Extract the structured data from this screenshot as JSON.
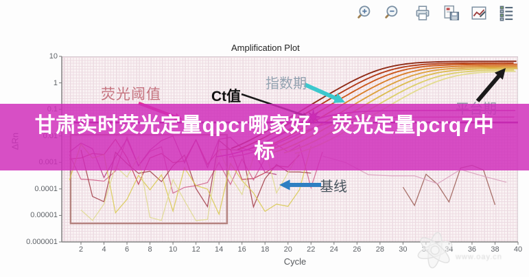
{
  "toolbar": {
    "buttons": [
      {
        "name": "zoom-in"
      },
      {
        "name": "zoom-out"
      },
      {
        "name": "print"
      },
      {
        "name": "save"
      },
      {
        "name": "chart-settings"
      },
      {
        "name": "legend"
      }
    ]
  },
  "banner": {
    "line1": "甘肃实时荧光定量qpcr哪家好，荧光定量pcrq7中",
    "line2": "标",
    "full_text": "甘肃实时荧光定量qpcr哪家好，荧光定量pcrq7中标",
    "background": "#cf2dba"
  },
  "chart_data": {
    "type": "line",
    "title": "Amplification Plot",
    "xlabel": "Cycle",
    "ylabel": "ΔRn",
    "x_ticks": [
      2,
      4,
      6,
      8,
      10,
      12,
      14,
      16,
      18,
      20,
      22,
      24,
      26,
      28,
      30,
      32,
      34,
      36,
      38,
      40
    ],
    "y_tick_labels": [
      "10",
      "1",
      "0.1",
      "0.01",
      "0.001",
      "0.0001",
      "0.00001",
      "0.000001"
    ],
    "x_range": [
      0.3,
      40
    ],
    "y_log_range": [
      -6,
      1
    ],
    "grid": true,
    "legend_position": "none",
    "threshold": {
      "value": 0.032,
      "color": "#8e1680"
    },
    "ct_marker": {
      "cycle": 22.2,
      "value": 0.052,
      "color": "#b62a9e"
    },
    "baseline_box": {
      "cycle_start": 1.1,
      "cycle_end": 14.7,
      "value_low": 5e-06,
      "value_high": 0.011,
      "color": "#b4837f"
    },
    "amplification_series": [
      {
        "color": "#8f2b16",
        "ct": 19.5,
        "plateau": 6.5
      },
      {
        "color": "#b33d18",
        "ct": 20.3,
        "plateau": 5.6
      },
      {
        "color": "#cc5a1d",
        "ct": 21.2,
        "plateau": 5.0
      },
      {
        "color": "#d97f2a",
        "ct": 22.2,
        "plateau": 4.4
      },
      {
        "color": "#dda23f",
        "ct": 23.2,
        "plateau": 3.9
      },
      {
        "color": "#dcbd52",
        "ct": 24.2,
        "plateau": 3.5
      },
      {
        "color": "#ddd06e",
        "ct": 25.3,
        "plateau": 3.1
      },
      {
        "color": "#e3dc92",
        "ct": 26.4,
        "plateau": 2.8
      },
      {
        "color": "#c0399a",
        "ct": 21.8,
        "plateau": 0.09
      },
      {
        "color": "#d4679f",
        "ct": 24.0,
        "plateau": 0.05
      }
    ],
    "noise_series": [
      {
        "color": "#c23a52",
        "seed": 11,
        "log_center": -2.9,
        "log_amp": 1.1,
        "cycle_start": 1,
        "cycle_end": 21,
        "step": 1
      },
      {
        "color": "#d05f8a",
        "seed": 22,
        "log_center": -3.0,
        "log_amp": 1.2,
        "cycle_start": 1,
        "cycle_end": 23,
        "step": 1
      },
      {
        "color": "#b73a7e",
        "seed": 33,
        "log_center": -2.7,
        "log_amp": 0.9,
        "cycle_start": 1,
        "cycle_end": 19,
        "step": 1
      },
      {
        "color": "#a03a44",
        "seed": 44,
        "log_center": -3.4,
        "log_amp": 1.3,
        "cycle_start": 2,
        "cycle_end": 22,
        "step": 1
      },
      {
        "color": "#d8c94f",
        "seed": 55,
        "log_center": -3.5,
        "log_amp": 1.6,
        "cycle_start": 1,
        "cycle_end": 22,
        "step": 1
      },
      {
        "color": "#ded98e",
        "seed": 66,
        "log_center": -3.8,
        "log_amp": 1.4,
        "cycle_start": 2,
        "cycle_end": 21,
        "step": 1
      },
      {
        "color": "#9a5a52",
        "seed": 77,
        "log_center": -3.8,
        "log_amp": 0.9,
        "cycle_start": 30,
        "cycle_end": 38,
        "step": 1
      },
      {
        "color": "#d9a1bd",
        "seed": 88,
        "log_center": -3.3,
        "log_amp": 0.8,
        "cycle_start": 23,
        "cycle_end": 40,
        "step": 2
      }
    ],
    "annotations": {
      "threshold": {
        "text": "荧光阈值",
        "color": "#c5737f",
        "arrow_color": "#e23a92"
      },
      "ct": {
        "text": "Ct值",
        "color": "#111111",
        "arrow_color": "#1a1a1a"
      },
      "exponential": {
        "text": "指数期",
        "color": "#93a2b0",
        "arrow_color": "#3cc8cd"
      },
      "plateau": {
        "text": "平台期",
        "color": "#8e9aa6",
        "arrow_color": "#1a1a1a"
      },
      "baseline": {
        "text": "基线",
        "color": "#46525c",
        "arrow_color": "#2e7fc2"
      }
    }
  },
  "watermark": {
    "url_text": "www.oay.cn"
  }
}
